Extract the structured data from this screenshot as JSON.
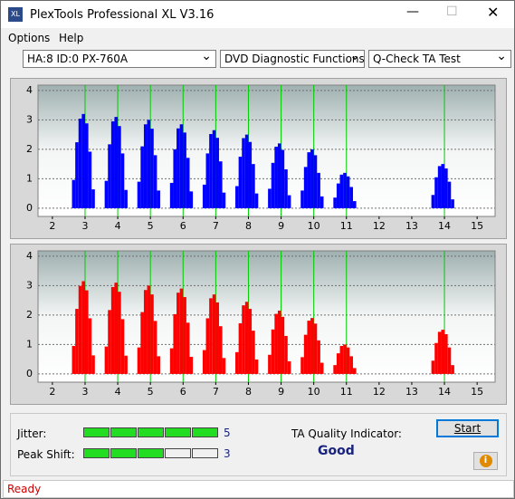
{
  "window": {
    "title": "PlexTools Professional XL V3.16"
  },
  "menu": [
    "Options",
    "Help"
  ],
  "toolbar": {
    "drive": "HA:8 ID:0  PX-760A",
    "function": "DVD Diagnostic Functions",
    "test": "Q-Check TA Test"
  },
  "charts": [
    {
      "type": "bar",
      "color": "#0000ff",
      "marker_color": "#00cc00",
      "xlim": [
        1.56,
        15.55
      ],
      "ylim": [
        -0.28,
        4.18
      ],
      "xticks": [
        2,
        3,
        4,
        5,
        6,
        7,
        8,
        9,
        10,
        11,
        12,
        13,
        14,
        15
      ],
      "yticks": [
        0,
        1,
        2,
        3,
        4
      ],
      "markers": [
        3,
        4,
        5,
        6,
        7,
        8,
        9,
        10,
        11,
        14
      ],
      "x": [
        2.65,
        2.75,
        2.85,
        2.95,
        3.05,
        3.15,
        3.25,
        3.65,
        3.75,
        3.85,
        3.95,
        4.05,
        4.15,
        4.25,
        4.65,
        4.75,
        4.85,
        4.95,
        5.05,
        5.15,
        5.25,
        5.65,
        5.75,
        5.85,
        5.95,
        6.05,
        6.15,
        6.25,
        6.65,
        6.75,
        6.85,
        6.95,
        7.05,
        7.15,
        7.25,
        7.65,
        7.75,
        7.85,
        7.95,
        8.05,
        8.15,
        8.25,
        8.65,
        8.75,
        8.85,
        8.95,
        9.05,
        9.15,
        9.25,
        9.65,
        9.75,
        9.85,
        9.95,
        10.05,
        10.15,
        10.25,
        10.65,
        10.75,
        10.85,
        10.95,
        11.05,
        11.15,
        11.25,
        13.65,
        13.75,
        13.85,
        13.95,
        14.05,
        14.15,
        14.25
      ],
      "values": [
        0.96,
        2.24,
        3.04,
        3.2,
        2.88,
        1.92,
        0.64,
        0.93,
        2.17,
        2.95,
        3.1,
        2.79,
        1.86,
        0.62,
        0.9,
        2.1,
        2.85,
        3.0,
        2.7,
        1.8,
        0.6,
        0.86,
        2.0,
        2.71,
        2.85,
        2.57,
        1.71,
        0.57,
        0.8,
        1.86,
        2.52,
        2.65,
        2.39,
        1.59,
        0.53,
        0.75,
        1.75,
        2.38,
        2.5,
        2.25,
        1.5,
        0.5,
        0.66,
        1.54,
        2.09,
        2.2,
        1.98,
        1.32,
        0.44,
        0.6,
        1.4,
        1.9,
        2.0,
        1.8,
        1.2,
        0.4,
        0.36,
        0.84,
        1.14,
        1.2,
        1.08,
        0.72,
        0.24,
        0.45,
        1.05,
        1.43,
        1.5,
        1.35,
        0.9,
        0.3
      ]
    },
    {
      "type": "bar",
      "color": "#ff0000",
      "marker_color": "#00cc00",
      "xlim": [
        1.56,
        15.55
      ],
      "ylim": [
        -0.28,
        4.18
      ],
      "xticks": [
        2,
        3,
        4,
        5,
        6,
        7,
        8,
        9,
        10,
        11,
        12,
        13,
        14,
        15
      ],
      "yticks": [
        0,
        1,
        2,
        3,
        4
      ],
      "markers": [
        3,
        4,
        5,
        6,
        7,
        8,
        9,
        10,
        11,
        14
      ],
      "x": [
        2.65,
        2.75,
        2.85,
        2.95,
        3.05,
        3.15,
        3.25,
        3.65,
        3.75,
        3.85,
        3.95,
        4.05,
        4.15,
        4.25,
        4.65,
        4.75,
        4.85,
        4.95,
        5.05,
        5.15,
        5.25,
        5.65,
        5.75,
        5.85,
        5.95,
        6.05,
        6.15,
        6.25,
        6.65,
        6.75,
        6.85,
        6.95,
        7.05,
        7.15,
        7.25,
        7.65,
        7.75,
        7.85,
        7.95,
        8.05,
        8.15,
        8.25,
        8.65,
        8.75,
        8.85,
        8.95,
        9.05,
        9.15,
        9.25,
        9.65,
        9.75,
        9.85,
        9.95,
        10.05,
        10.15,
        10.25,
        10.65,
        10.75,
        10.85,
        10.95,
        11.05,
        11.15,
        11.25,
        13.65,
        13.75,
        13.85,
        13.95,
        14.05,
        14.15,
        14.25
      ],
      "values": [
        0.95,
        2.21,
        2.99,
        3.15,
        2.84,
        1.89,
        0.63,
        0.93,
        2.17,
        2.95,
        3.1,
        2.79,
        1.86,
        0.62,
        0.9,
        2.1,
        2.85,
        3.0,
        2.7,
        1.8,
        0.6,
        0.87,
        2.03,
        2.76,
        2.9,
        2.61,
        1.74,
        0.58,
        0.81,
        1.89,
        2.57,
        2.7,
        2.43,
        1.62,
        0.54,
        0.74,
        1.72,
        2.33,
        2.45,
        2.21,
        1.47,
        0.49,
        0.65,
        1.51,
        2.04,
        2.15,
        1.94,
        1.29,
        0.43,
        0.57,
        1.33,
        1.81,
        1.9,
        1.71,
        1.14,
        0.38,
        0.3,
        0.7,
        0.95,
        1.0,
        0.9,
        0.6,
        0.2,
        0.45,
        1.05,
        1.43,
        1.5,
        1.35,
        0.9,
        0.3
      ]
    }
  ],
  "quality": {
    "segments": 5,
    "jitter": {
      "label": "Jitter:",
      "value": 5
    },
    "peak_shift": {
      "label": "Peak Shift:",
      "value": 3
    },
    "indicator_label": "TA Quality Indicator:",
    "indicator": "Good",
    "start": "Start"
  },
  "status": "Ready"
}
